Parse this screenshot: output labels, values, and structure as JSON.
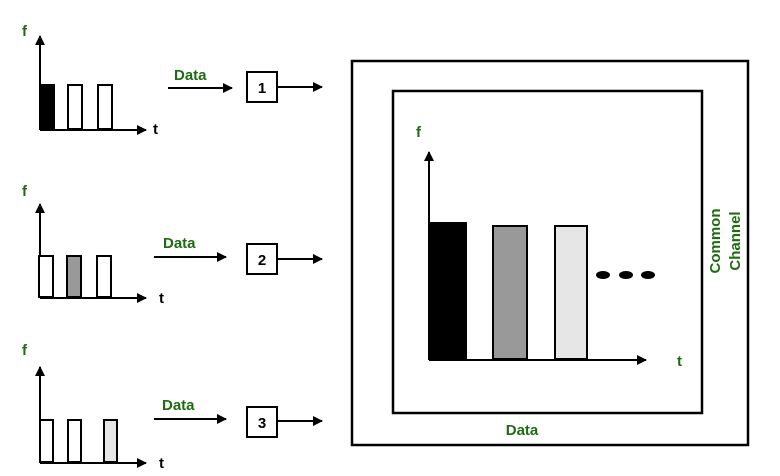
{
  "inputs": [
    {
      "f_label": "f",
      "t_label": "t",
      "data_label": "Data",
      "channel_number": "1",
      "bars": [
        "#000000",
        "#ffffff",
        "#ffffff"
      ]
    },
    {
      "f_label": "f",
      "t_label": "t",
      "data_label": "Data",
      "channel_number": "2",
      "bars": [
        "#ffffff",
        "#999999",
        "#ffffff"
      ]
    },
    {
      "f_label": "f",
      "t_label": "t",
      "data_label": "Data",
      "channel_number": "3",
      "bars": [
        "#ffffff",
        "#ffffff",
        "#e6e6e6"
      ]
    }
  ],
  "common": {
    "f_label": "f",
    "t_label": "t",
    "data_label": "Data",
    "channel_label_line1": "Common",
    "channel_label_line2": "Channel",
    "bars": [
      "#000000",
      "#999999",
      "#e6e6e6"
    ],
    "continuation": "•••"
  },
  "colors": {
    "label_green": "#1f6b12",
    "stroke": "#000000"
  }
}
